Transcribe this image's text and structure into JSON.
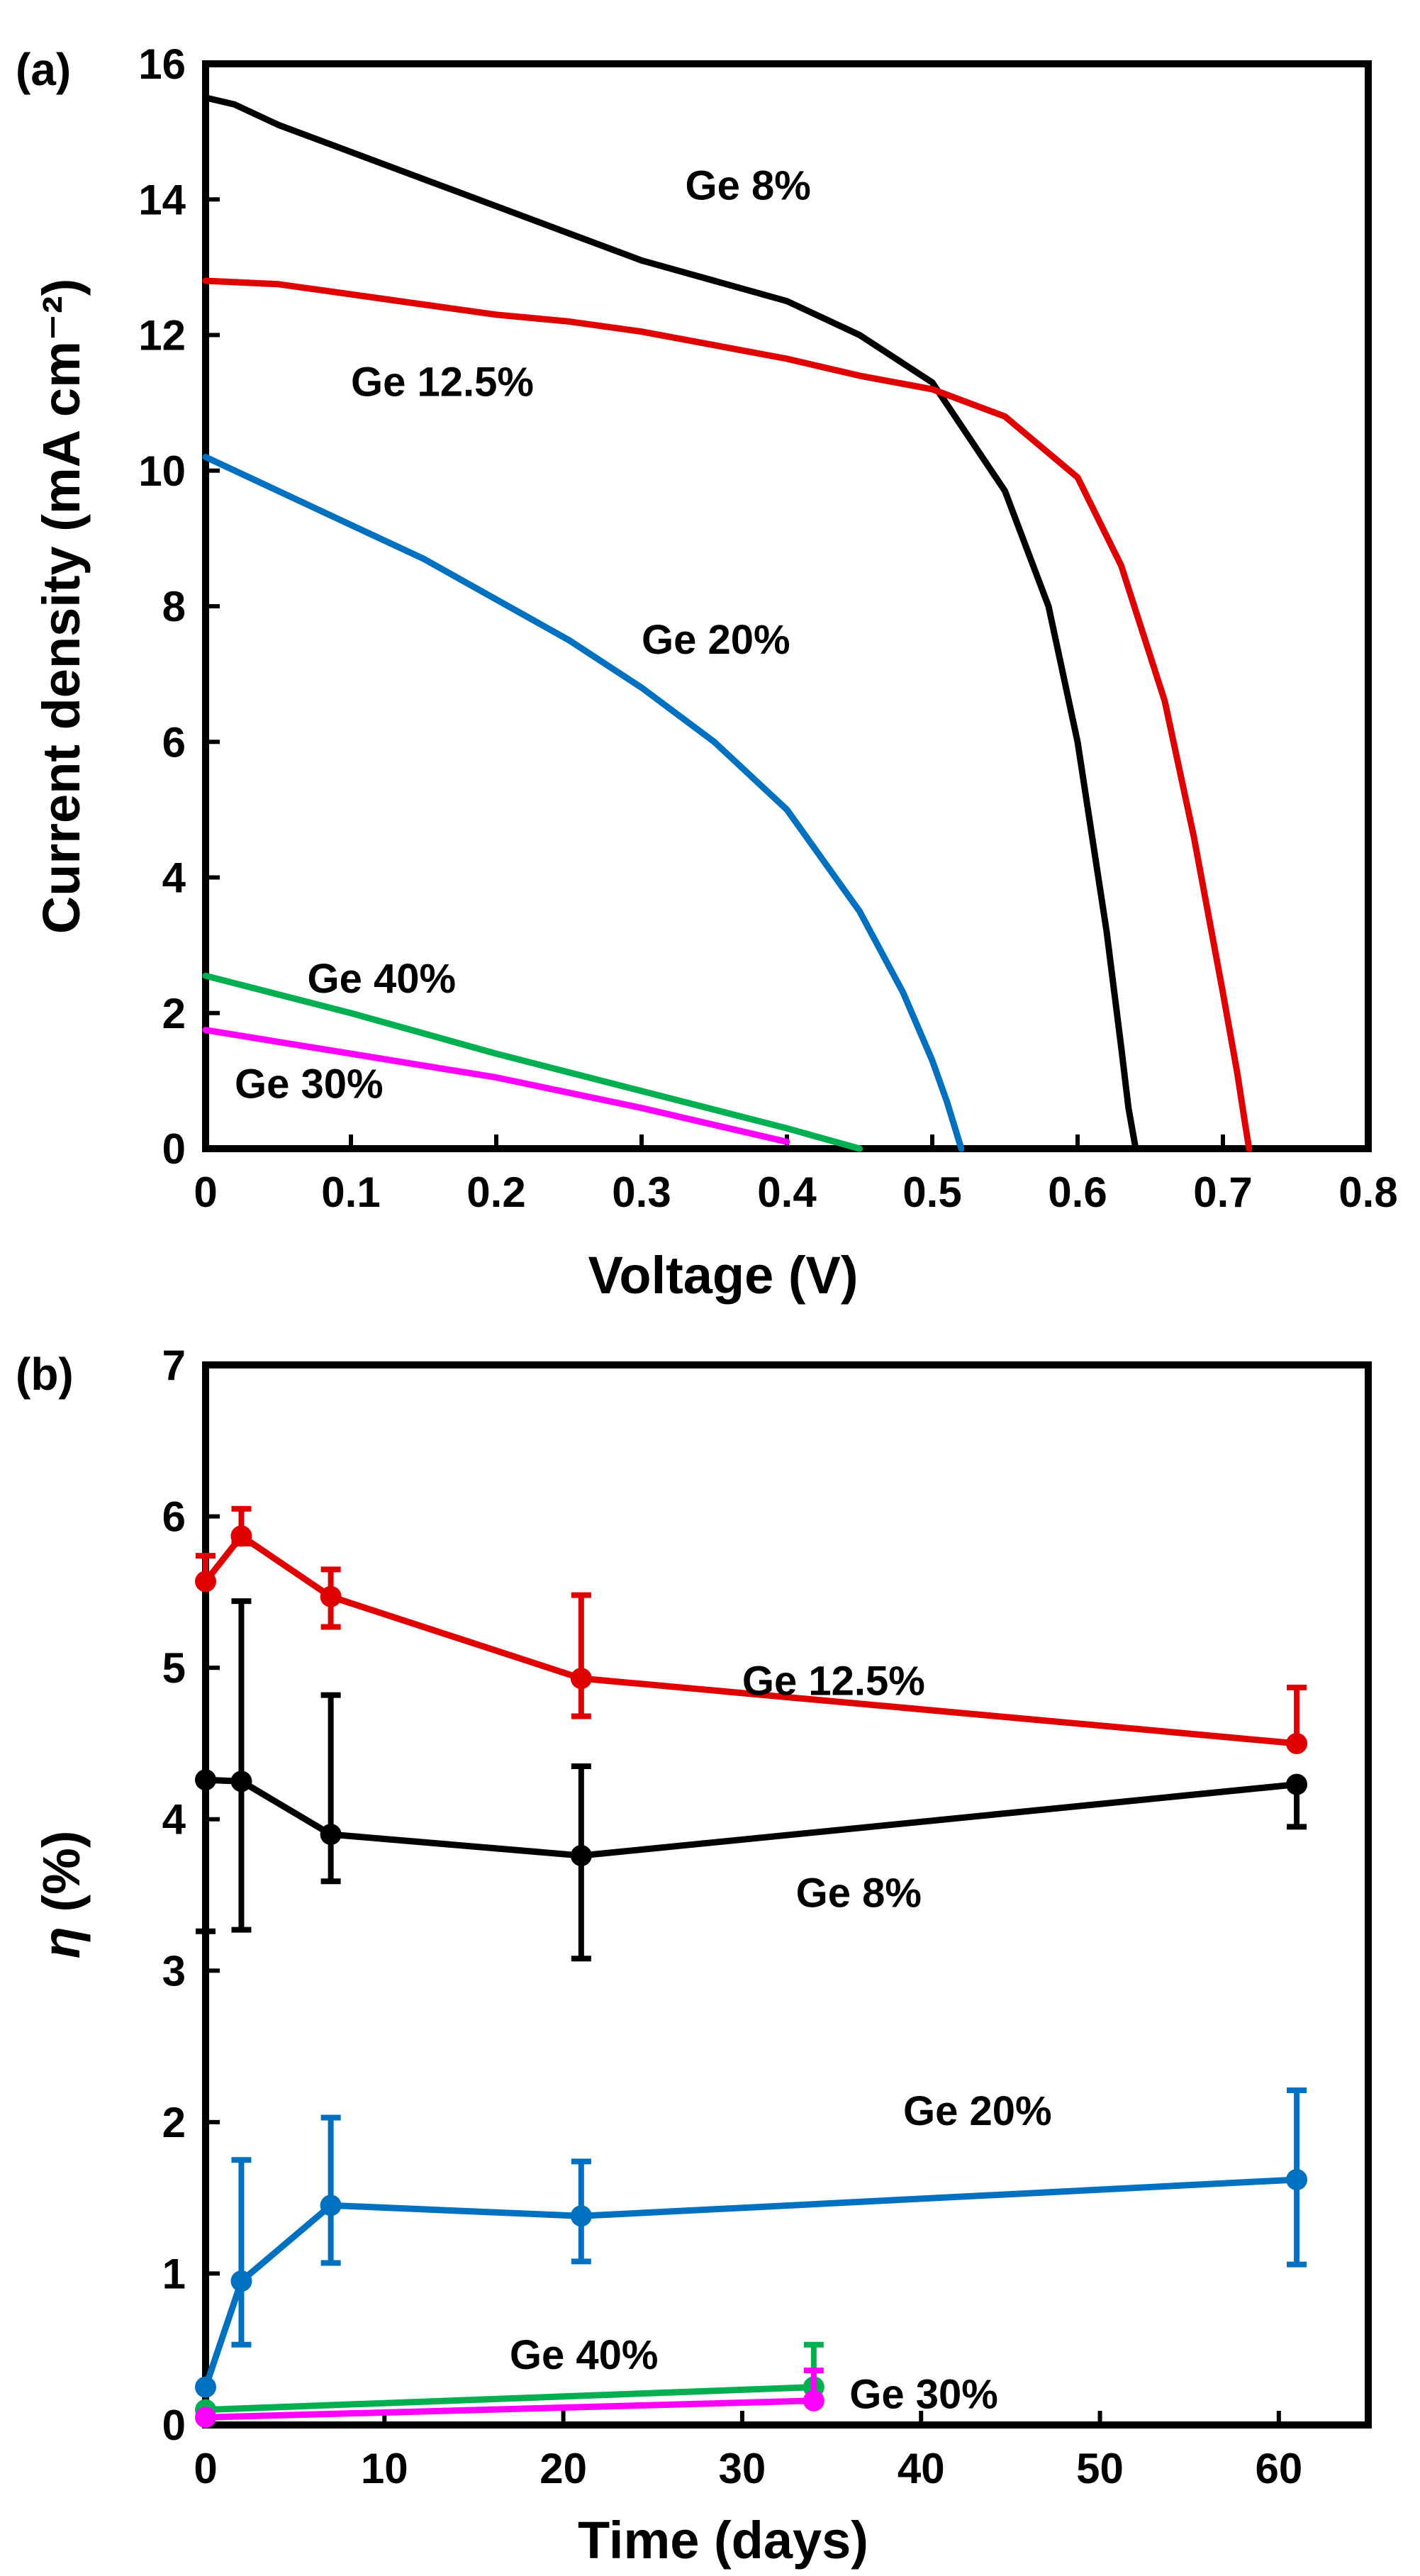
{
  "chart_data": [
    {
      "type": "line",
      "panel_label": "(a)",
      "xlabel": "Voltage (V)",
      "ylabel": "Current density (mA cm⁻²)",
      "xlim": [
        0,
        0.8
      ],
      "ylim": [
        0,
        16
      ],
      "xticks": [
        0,
        0.1,
        0.2,
        0.3,
        0.4,
        0.5,
        0.6,
        0.7,
        0.8
      ],
      "xtick_labels": [
        "0",
        "0.1",
        "0.2",
        "0.3",
        "0.4",
        "0.5",
        "0.6",
        "0.7",
        "0.8"
      ],
      "yticks": [
        0,
        2,
        4,
        6,
        8,
        10,
        12,
        14,
        16
      ],
      "ytick_labels": [
        "0",
        "2",
        "4",
        "6",
        "8",
        "10",
        "12",
        "14",
        "16"
      ],
      "grid": false,
      "series": [
        {
          "name": "Ge 8%",
          "color": "#000000",
          "label_at": [
            0.33,
            14.0
          ],
          "x": [
            0,
            0.02,
            0.05,
            0.1,
            0.15,
            0.2,
            0.25,
            0.3,
            0.35,
            0.4,
            0.45,
            0.5,
            0.55,
            0.58,
            0.6,
            0.62,
            0.63,
            0.635,
            0.64
          ],
          "y": [
            15.5,
            15.4,
            15.1,
            14.7,
            14.3,
            13.9,
            13.5,
            13.1,
            12.8,
            12.5,
            12.0,
            11.3,
            9.7,
            8.0,
            6.0,
            3.2,
            1.5,
            0.6,
            0
          ]
        },
        {
          "name": "Ge 12.5%",
          "color": "#e00000",
          "label_at": [
            0.1,
            11.1
          ],
          "x": [
            0,
            0.05,
            0.1,
            0.15,
            0.2,
            0.25,
            0.3,
            0.35,
            0.4,
            0.45,
            0.5,
            0.55,
            0.6,
            0.63,
            0.66,
            0.68,
            0.7,
            0.71,
            0.715,
            0.718
          ],
          "y": [
            12.8,
            12.75,
            12.6,
            12.45,
            12.3,
            12.2,
            12.05,
            11.85,
            11.65,
            11.4,
            11.2,
            10.8,
            9.9,
            8.6,
            6.6,
            4.6,
            2.3,
            1.1,
            0.4,
            0
          ]
        },
        {
          "name": "Ge 20%",
          "color": "#0070c0",
          "label_at": [
            0.3,
            7.3
          ],
          "x": [
            0,
            0.05,
            0.1,
            0.15,
            0.2,
            0.25,
            0.3,
            0.35,
            0.4,
            0.45,
            0.48,
            0.5,
            0.51,
            0.52
          ],
          "y": [
            10.2,
            9.7,
            9.2,
            8.7,
            8.1,
            7.5,
            6.8,
            6.0,
            5.0,
            3.5,
            2.3,
            1.3,
            0.7,
            0
          ]
        },
        {
          "name": "Ge 40%",
          "color": "#00b050",
          "label_at": [
            0.07,
            2.3
          ],
          "x": [
            0,
            0.1,
            0.2,
            0.3,
            0.4,
            0.45
          ],
          "y": [
            2.55,
            2.0,
            1.4,
            0.85,
            0.3,
            0
          ]
        },
        {
          "name": "Ge 30%",
          "color": "#ff00ff",
          "label_at": [
            0.02,
            0.75
          ],
          "x": [
            0,
            0.1,
            0.2,
            0.3,
            0.4
          ],
          "y": [
            1.75,
            1.4,
            1.05,
            0.6,
            0.1
          ]
        }
      ]
    },
    {
      "type": "line",
      "panel_label": "(b)",
      "xlabel": "Time (days)",
      "ylabel_italic": "η",
      "ylabel_rest": " (%)",
      "xlim": [
        0,
        65
      ],
      "ylim": [
        0,
        7
      ],
      "xticks": [
        0,
        10,
        20,
        30,
        40,
        50,
        60
      ],
      "xtick_labels": [
        "0",
        "10",
        "20",
        "30",
        "40",
        "50",
        "60"
      ],
      "yticks": [
        0,
        1,
        2,
        3,
        4,
        5,
        6,
        7
      ],
      "ytick_labels": [
        "0",
        "1",
        "2",
        "3",
        "4",
        "5",
        "6",
        "7"
      ],
      "grid": false,
      "series": [
        {
          "name": "Ge 12.5%",
          "color": "#e00000",
          "label_at": [
            30,
            4.82
          ],
          "x": [
            0,
            2,
            7,
            21,
            61
          ],
          "y": [
            5.57,
            5.87,
            5.47,
            4.93,
            4.5
          ],
          "err_up": [
            0.17,
            0.18,
            0.18,
            0.55,
            0.37
          ],
          "err_down": [
            0.0,
            0.05,
            0.2,
            0.25,
            0.0
          ]
        },
        {
          "name": "Ge 8%",
          "color": "#000000",
          "label_at": [
            33,
            3.42
          ],
          "x": [
            0,
            2,
            7,
            21,
            61
          ],
          "y": [
            4.26,
            4.25,
            3.9,
            3.76,
            4.23
          ],
          "err_up": [
            0.0,
            1.19,
            0.92,
            0.59,
            0.0
          ],
          "err_down": [
            1.0,
            0.98,
            0.31,
            0.68,
            0.28
          ]
        },
        {
          "name": "Ge 20%",
          "color": "#0070c0",
          "label_at": [
            39,
            1.98
          ],
          "x": [
            0,
            2,
            7,
            21,
            61
          ],
          "y": [
            0.25,
            0.95,
            1.45,
            1.38,
            1.62
          ],
          "err_up": [
            0.0,
            0.8,
            0.58,
            0.36,
            0.59
          ],
          "err_down": [
            0.0,
            0.42,
            0.38,
            0.3,
            0.56
          ]
        },
        {
          "name": "Ge 40%",
          "color": "#00b050",
          "label_at": [
            17,
            0.37
          ],
          "x": [
            0,
            34
          ],
          "y": [
            0.1,
            0.25
          ],
          "err_up": [
            0.0,
            0.28
          ],
          "err_down": [
            0.0,
            0.0
          ]
        },
        {
          "name": "Ge 30%",
          "color": "#ff00ff",
          "label_at": [
            36,
            0.11
          ],
          "x": [
            0,
            34
          ],
          "y": [
            0.05,
            0.16
          ],
          "err_up": [
            0.0,
            0.2
          ],
          "err_down": [
            0.0,
            0.0
          ]
        }
      ]
    }
  ]
}
